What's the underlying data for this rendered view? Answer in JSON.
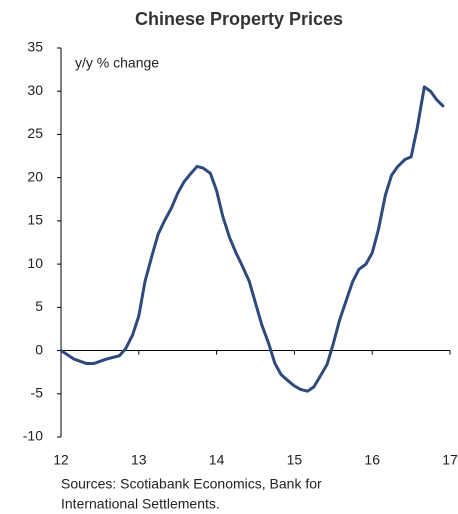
{
  "chart_data": {
    "type": "line",
    "title": "Chinese Property Prices",
    "annotations": [
      "y/y % change"
    ],
    "source": [
      "Sources: Scotiabank Economics, Bank for",
      "International Settlements."
    ],
    "x": [
      12.0,
      12.17,
      12.33,
      12.42,
      12.58,
      12.75,
      12.83,
      12.92,
      13.0,
      13.08,
      13.17,
      13.25,
      13.33,
      13.42,
      13.5,
      13.58,
      13.67,
      13.75,
      13.83,
      13.92,
      14.0,
      14.08,
      14.17,
      14.25,
      14.33,
      14.42,
      14.5,
      14.58,
      14.67,
      14.75,
      14.83,
      14.92,
      15.0,
      15.08,
      15.17,
      15.25,
      15.33,
      15.42,
      15.5,
      15.58,
      15.67,
      15.75,
      15.83,
      15.92,
      16.0,
      16.08,
      16.17,
      16.25,
      16.33,
      16.42,
      16.5,
      16.58,
      16.67,
      16.75,
      16.83,
      16.92
    ],
    "series": [
      {
        "color": "#2e4a7d",
        "values": [
          0,
          -1.0,
          -1.5,
          -1.5,
          -1.0,
          -0.6,
          0.2,
          1.8,
          4,
          8,
          11,
          13.5,
          15,
          16.5,
          18.2,
          19.5,
          20.5,
          21.3,
          21.1,
          20.5,
          18.5,
          15.5,
          13,
          11.3,
          9.8,
          8,
          5.5,
          3,
          0.8,
          -1.5,
          -2.8,
          -3.5,
          -4.1,
          -4.5,
          -4.7,
          -4.2,
          -3.0,
          -1.6,
          0.8,
          3.5,
          5.9,
          8,
          9.4,
          10,
          11.3,
          14,
          18,
          20.3,
          21.3,
          22.1,
          22.4,
          25.8,
          30.5,
          30,
          29,
          28.2
        ]
      }
    ],
    "xlim": [
      12,
      17
    ],
    "xticks": [
      12,
      13,
      14,
      15,
      16,
      17
    ],
    "ylim": [
      -10,
      35
    ],
    "yticks": [
      -10,
      -5,
      0,
      5,
      10,
      15,
      20,
      25,
      30,
      35
    ],
    "grid": false
  }
}
